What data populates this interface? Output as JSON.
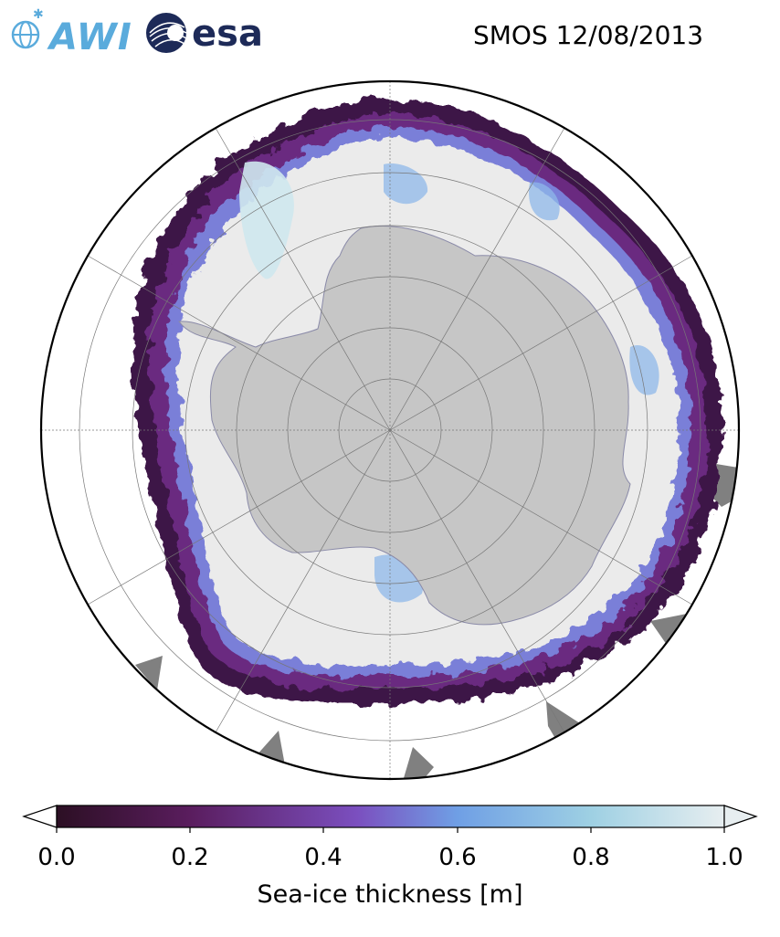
{
  "header": {
    "logo_awi_text": "AWI",
    "logo_esa_text": "esa",
    "title": "SMOS 12/08/2013"
  },
  "colors": {
    "ocean": "#ffffff",
    "land": "#c6c6c6",
    "ice_interior": "#ebebeb",
    "ice_shelf_gray": "#808080",
    "awi_blue": "#5aabdc",
    "esa_navy": "#1d2a58"
  },
  "colorbar": {
    "label": "Sea-ice thickness [m]",
    "ticks": [
      "0.0",
      "0.2",
      "0.4",
      "0.6",
      "0.8",
      "1.0"
    ],
    "min": 0.0,
    "max": 1.0,
    "extend": "both",
    "colormap": [
      "#2c0f24",
      "#5a1d5e",
      "#7b4fbf",
      "#6f9fe5",
      "#9ed0e3",
      "#e7eef0"
    ]
  },
  "map": {
    "projection": "south-polar-stereographic",
    "gridlines": true
  }
}
